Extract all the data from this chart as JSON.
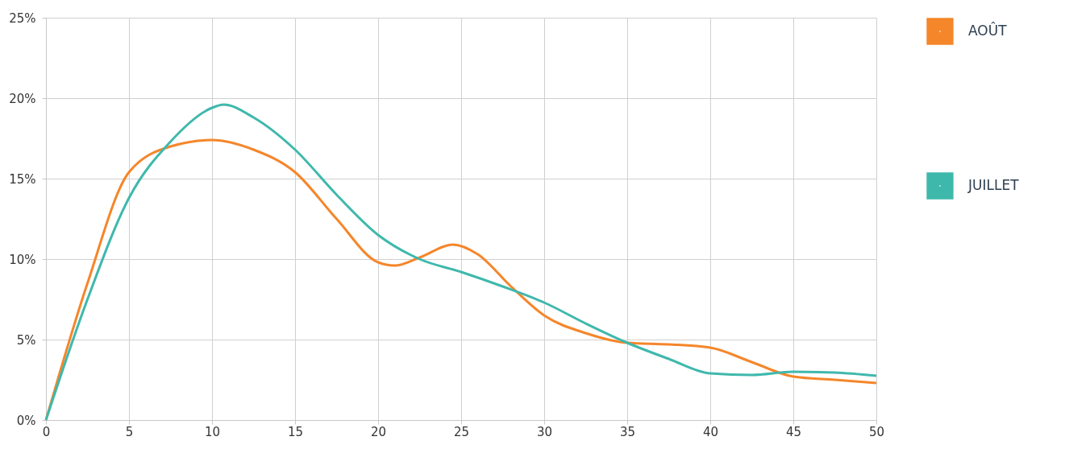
{
  "chart_data": {
    "type": "line",
    "series": [
      {
        "name": "AOÛT",
        "color": "#f5862a",
        "x": [
          0,
          2.5,
          5,
          7.5,
          10,
          12.5,
          15,
          17.5,
          20,
          21,
          22.5,
          24.5,
          26,
          28,
          30,
          32.5,
          35,
          37.5,
          40,
          42.5,
          45,
          47.5,
          50
        ],
        "values": [
          0,
          8.5,
          15.4,
          17.0,
          17.4,
          16.8,
          15.4,
          12.5,
          9.8,
          9.6,
          10.1,
          10.9,
          10.3,
          8.3,
          6.5,
          5.4,
          4.8,
          4.7,
          4.5,
          3.6,
          2.7,
          2.5,
          2.3
        ]
      },
      {
        "name": "JUILLET",
        "color": "#3fb8ac",
        "x": [
          0,
          2.5,
          5,
          7.5,
          10,
          10.7,
          12.5,
          15,
          17.5,
          20,
          22.5,
          25,
          27.5,
          30,
          32.5,
          35,
          37.5,
          40,
          42.5,
          45,
          47.5,
          50
        ],
        "values": [
          0,
          7.5,
          13.8,
          17.3,
          19.4,
          19.6,
          18.8,
          16.8,
          14.0,
          11.5,
          10.0,
          9.2,
          8.3,
          7.3,
          6.0,
          4.8,
          3.8,
          2.9,
          2.8,
          3.0,
          2.95,
          2.75
        ]
      }
    ],
    "xlim": [
      0,
      50
    ],
    "xticks": [
      0,
      5,
      10,
      15,
      20,
      25,
      30,
      35,
      40,
      45,
      50
    ],
    "ylim": [
      0,
      25
    ],
    "yticks": [
      {
        "value": 0,
        "label": "0%"
      },
      {
        "value": 5,
        "label": "5%"
      },
      {
        "value": 10,
        "label": "10%"
      },
      {
        "value": 15,
        "label": "15%"
      },
      {
        "value": 20,
        "label": "20%"
      },
      {
        "value": 25,
        "label": "25%"
      }
    ],
    "grid": true,
    "legend": "top right",
    "marker": "none",
    "line_style": "solid"
  }
}
